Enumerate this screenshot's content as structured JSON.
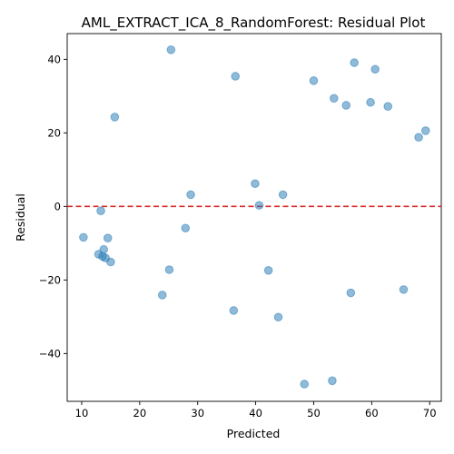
{
  "chart_data": {
    "type": "scatter",
    "title": "AML_EXTRACT_ICA_8_RandomForest: Residual Plot",
    "xlabel": "Predicted",
    "ylabel": "Residual",
    "xlim": [
      7.5,
      72
    ],
    "ylim": [
      -53,
      47
    ],
    "xticks": [
      10,
      20,
      30,
      40,
      50,
      60,
      70
    ],
    "yticks": [
      -40,
      -20,
      0,
      20,
      40
    ],
    "grid": false,
    "reference_line": {
      "y": 0,
      "color": "#d62728",
      "style": "dashed"
    },
    "point_color": "#1f77b4",
    "points": [
      {
        "x": 25.4,
        "y": 42.6
      },
      {
        "x": 57.0,
        "y": 39.1
      },
      {
        "x": 60.6,
        "y": 37.3
      },
      {
        "x": 36.5,
        "y": 35.4
      },
      {
        "x": 50.0,
        "y": 34.2
      },
      {
        "x": 53.5,
        "y": 29.4
      },
      {
        "x": 55.6,
        "y": 27.5
      },
      {
        "x": 59.8,
        "y": 28.3
      },
      {
        "x": 62.8,
        "y": 27.2
      },
      {
        "x": 15.7,
        "y": 24.3
      },
      {
        "x": 69.3,
        "y": 20.6
      },
      {
        "x": 68.1,
        "y": 18.8
      },
      {
        "x": 39.9,
        "y": 6.2
      },
      {
        "x": 28.8,
        "y": 3.2
      },
      {
        "x": 44.7,
        "y": 3.2
      },
      {
        "x": 40.6,
        "y": 0.3
      },
      {
        "x": 13.3,
        "y": -1.2
      },
      {
        "x": 27.9,
        "y": -5.9
      },
      {
        "x": 10.3,
        "y": -8.4
      },
      {
        "x": 14.5,
        "y": -8.6
      },
      {
        "x": 13.8,
        "y": -11.7
      },
      {
        "x": 12.9,
        "y": -13.0
      },
      {
        "x": 13.6,
        "y": -13.6
      },
      {
        "x": 14.1,
        "y": -14.0
      },
      {
        "x": 15.0,
        "y": -15.1
      },
      {
        "x": 25.1,
        "y": -17.2
      },
      {
        "x": 42.2,
        "y": -17.4
      },
      {
        "x": 65.5,
        "y": -22.6
      },
      {
        "x": 56.4,
        "y": -23.5
      },
      {
        "x": 23.9,
        "y": -24.1
      },
      {
        "x": 36.2,
        "y": -28.3
      },
      {
        "x": 43.9,
        "y": -30.1
      },
      {
        "x": 53.2,
        "y": -47.4
      },
      {
        "x": 48.4,
        "y": -48.3
      }
    ]
  }
}
